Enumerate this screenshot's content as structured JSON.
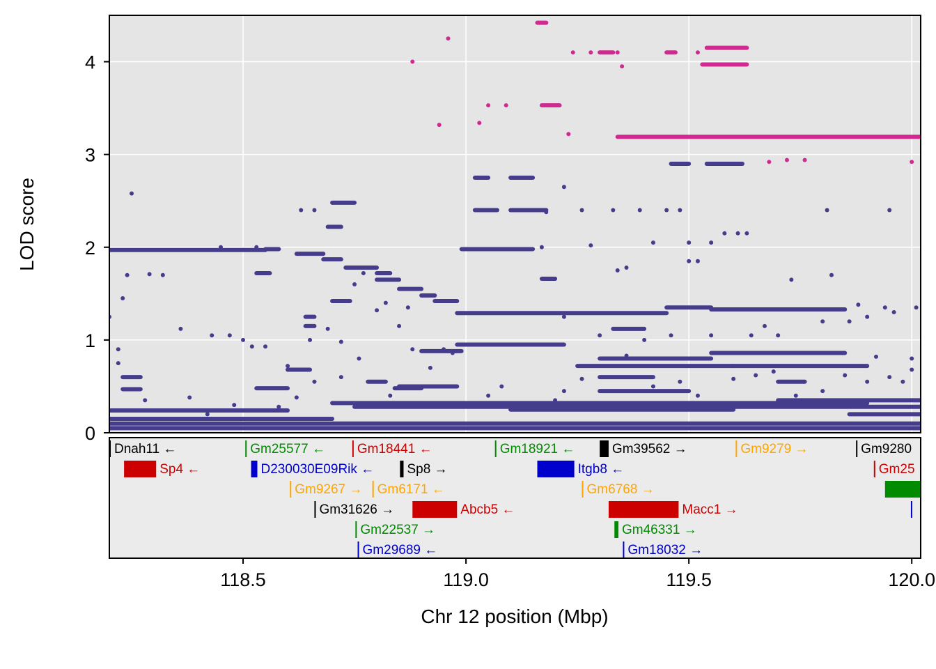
{
  "chart_data": {
    "type": "scatter",
    "title": "",
    "xlabel": "Chr 12 position (Mbp)",
    "ylabel": "LOD score",
    "xlim": [
      118.2,
      120.02
    ],
    "ylim": [
      0,
      4.5
    ],
    "x_ticks": [
      {
        "value": 118.5,
        "label": "118.5"
      },
      {
        "value": 119.0,
        "label": "119.0"
      },
      {
        "value": 119.5,
        "label": "119.5"
      },
      {
        "value": 120.0,
        "label": "120.0"
      }
    ],
    "y_ticks": [
      {
        "value": 0,
        "label": "0"
      },
      {
        "value": 1,
        "label": "1"
      },
      {
        "value": 2,
        "label": "2"
      },
      {
        "value": 3,
        "label": "3"
      },
      {
        "value": 4,
        "label": "4"
      }
    ],
    "grid": true,
    "colors": {
      "panel_bg": "#e5e5e5",
      "grid": "#ffffff",
      "snp_low": "#453d8c",
      "snp_high": "#ce2a8f"
    },
    "series": [
      {
        "color": "#453d8c",
        "segments": [
          [
            118.2,
            118.55,
            1.97
          ],
          [
            118.55,
            118.58,
            1.98
          ],
          [
            118.62,
            118.68,
            1.93
          ],
          [
            118.68,
            118.72,
            1.87
          ],
          [
            118.73,
            118.8,
            1.78
          ],
          [
            118.8,
            118.83,
            1.72
          ],
          [
            118.8,
            118.85,
            1.65
          ],
          [
            118.85,
            118.9,
            1.55
          ],
          [
            118.9,
            118.93,
            1.48
          ],
          [
            118.93,
            118.98,
            1.42
          ],
          [
            118.98,
            119.45,
            1.29
          ],
          [
            119.45,
            119.55,
            1.35
          ],
          [
            119.55,
            119.85,
            1.33
          ],
          [
            118.7,
            118.74,
            1.42
          ],
          [
            118.7,
            118.75,
            2.48
          ],
          [
            118.69,
            118.72,
            2.22
          ],
          [
            118.99,
            119.15,
            1.98
          ],
          [
            119.02,
            119.05,
            2.75
          ],
          [
            119.02,
            119.07,
            2.4
          ],
          [
            119.1,
            119.18,
            2.4
          ],
          [
            119.1,
            119.15,
            2.75
          ],
          [
            119.17,
            119.2,
            1.66
          ],
          [
            119.46,
            119.5,
            2.9
          ],
          [
            119.54,
            119.62,
            2.9
          ],
          [
            119.13,
            119.22,
            0.95
          ],
          [
            118.98,
            119.13,
            0.95
          ],
          [
            118.9,
            118.99,
            0.88
          ],
          [
            118.85,
            118.98,
            0.5
          ],
          [
            118.78,
            118.82,
            0.55
          ],
          [
            118.7,
            119.9,
            0.32
          ],
          [
            118.75,
            120.02,
            0.28
          ],
          [
            119.1,
            119.6,
            0.25
          ],
          [
            119.55,
            119.85,
            0.86
          ],
          [
            119.3,
            119.55,
            0.8
          ],
          [
            119.25,
            119.6,
            0.72
          ],
          [
            119.6,
            119.9,
            0.72
          ],
          [
            119.7,
            119.76,
            0.55
          ],
          [
            119.3,
            119.5,
            0.45
          ],
          [
            119.7,
            120.02,
            0.35
          ],
          [
            118.2,
            118.6,
            0.24
          ],
          [
            118.2,
            120.02,
            0.05
          ],
          [
            118.2,
            120.02,
            0.1
          ],
          [
            118.2,
            118.7,
            0.15
          ],
          [
            118.64,
            118.66,
            1.25
          ],
          [
            118.64,
            118.66,
            1.15
          ],
          [
            118.6,
            118.65,
            0.68
          ],
          [
            118.53,
            118.6,
            0.48
          ],
          [
            118.23,
            118.27,
            0.6
          ],
          [
            118.23,
            118.27,
            0.47
          ],
          [
            119.86,
            120.02,
            0.2
          ],
          [
            119.3,
            119.42,
            0.6
          ],
          [
            119.33,
            119.4,
            1.12
          ],
          [
            118.53,
            118.56,
            1.72
          ],
          [
            118.84,
            118.9,
            0.48
          ]
        ],
        "points": [
          [
            118.25,
            2.58
          ],
          [
            118.63,
            2.4
          ],
          [
            118.66,
            2.4
          ],
          [
            118.2,
            1.25
          ],
          [
            118.23,
            1.45
          ],
          [
            118.22,
            0.9
          ],
          [
            118.24,
            1.7
          ],
          [
            118.29,
            1.71
          ],
          [
            118.32,
            1.7
          ],
          [
            118.36,
            1.12
          ],
          [
            118.43,
            1.05
          ],
          [
            118.47,
            1.05
          ],
          [
            118.5,
            1.0
          ],
          [
            118.52,
            0.93
          ],
          [
            118.55,
            0.93
          ],
          [
            118.6,
            0.72
          ],
          [
            118.45,
            2.0
          ],
          [
            118.53,
            2.0
          ],
          [
            118.58,
            1.98
          ],
          [
            118.62,
            0.38
          ],
          [
            118.65,
            1.0
          ],
          [
            118.69,
            1.12
          ],
          [
            118.72,
            0.98
          ],
          [
            118.75,
            1.6
          ],
          [
            118.77,
            1.72
          ],
          [
            118.8,
            1.32
          ],
          [
            118.82,
            1.4
          ],
          [
            118.85,
            1.15
          ],
          [
            118.87,
            1.35
          ],
          [
            118.88,
            0.9
          ],
          [
            118.92,
            0.7
          ],
          [
            118.95,
            0.9
          ],
          [
            118.97,
            0.86
          ],
          [
            119.22,
            2.65
          ],
          [
            119.18,
            2.38
          ],
          [
            119.26,
            2.4
          ],
          [
            119.33,
            2.4
          ],
          [
            119.39,
            2.4
          ],
          [
            119.42,
            2.05
          ],
          [
            119.45,
            2.4
          ],
          [
            119.48,
            2.4
          ],
          [
            119.5,
            2.05
          ],
          [
            119.55,
            2.05
          ],
          [
            119.58,
            2.15
          ],
          [
            119.61,
            2.15
          ],
          [
            119.63,
            2.15
          ],
          [
            119.17,
            2.0
          ],
          [
            119.28,
            2.02
          ],
          [
            119.34,
            1.75
          ],
          [
            119.36,
            1.78
          ],
          [
            119.22,
            1.25
          ],
          [
            119.3,
            1.05
          ],
          [
            119.36,
            0.83
          ],
          [
            119.4,
            1.0
          ],
          [
            119.46,
            1.05
          ],
          [
            119.5,
            1.85
          ],
          [
            119.52,
            1.85
          ],
          [
            119.55,
            1.05
          ],
          [
            119.64,
            1.05
          ],
          [
            119.67,
            1.15
          ],
          [
            119.7,
            1.05
          ],
          [
            119.73,
            1.65
          ],
          [
            119.8,
            1.2
          ],
          [
            119.82,
            1.7
          ],
          [
            119.86,
            1.2
          ],
          [
            119.88,
            1.38
          ],
          [
            119.9,
            1.25
          ],
          [
            119.94,
            1.35
          ],
          [
            119.96,
            1.3
          ],
          [
            119.98,
            0.55
          ],
          [
            120.0,
            0.8
          ],
          [
            120.01,
            1.35
          ],
          [
            119.81,
            2.4
          ],
          [
            119.95,
            2.4
          ],
          [
            119.92,
            0.82
          ],
          [
            118.22,
            0.75
          ],
          [
            118.28,
            0.35
          ],
          [
            118.38,
            0.38
          ],
          [
            118.42,
            0.2
          ],
          [
            118.48,
            0.3
          ],
          [
            118.58,
            0.28
          ],
          [
            118.66,
            0.55
          ],
          [
            118.72,
            0.6
          ],
          [
            118.76,
            0.8
          ],
          [
            118.83,
            0.4
          ],
          [
            119.05,
            0.4
          ],
          [
            119.08,
            0.5
          ],
          [
            119.2,
            0.35
          ],
          [
            119.22,
            0.45
          ],
          [
            119.26,
            0.58
          ],
          [
            119.4,
            0.3
          ],
          [
            119.42,
            0.5
          ],
          [
            119.48,
            0.55
          ],
          [
            119.52,
            0.4
          ],
          [
            119.6,
            0.58
          ],
          [
            119.65,
            0.62
          ],
          [
            119.69,
            0.66
          ],
          [
            119.74,
            0.4
          ],
          [
            119.8,
            0.45
          ],
          [
            119.85,
            0.62
          ],
          [
            119.9,
            0.55
          ],
          [
            119.95,
            0.6
          ],
          [
            120.0,
            0.68
          ]
        ]
      },
      {
        "color": "#ce2a8f",
        "segments": [
          [
            119.54,
            119.63,
            4.15
          ],
          [
            119.53,
            119.63,
            3.97
          ],
          [
            119.17,
            119.21,
            3.53
          ],
          [
            119.34,
            120.02,
            3.19
          ],
          [
            119.16,
            119.18,
            4.42
          ],
          [
            119.3,
            119.33,
            4.1
          ],
          [
            119.45,
            119.47,
            4.1
          ]
        ],
        "points": [
          [
            118.88,
            4.0
          ],
          [
            118.96,
            4.25
          ],
          [
            118.94,
            3.32
          ],
          [
            119.03,
            3.34
          ],
          [
            119.05,
            3.53
          ],
          [
            119.09,
            3.53
          ],
          [
            119.24,
            4.1
          ],
          [
            119.28,
            4.1
          ],
          [
            119.34,
            4.1
          ],
          [
            119.35,
            3.95
          ],
          [
            119.23,
            3.22
          ],
          [
            119.52,
            4.1
          ],
          [
            119.68,
            2.92
          ],
          [
            119.72,
            2.94
          ],
          [
            119.76,
            2.94
          ],
          [
            120.0,
            2.92
          ]
        ]
      }
    ],
    "genes": [
      {
        "name": "Dnah11",
        "label": "Dnah11 ←",
        "start": 118.2,
        "end": 118.2,
        "row": 0,
        "color": "#000000"
      },
      {
        "name": "Gm25577",
        "label": "Gm25577 ←",
        "start": 118.505,
        "end": 118.505,
        "row": 0,
        "color": "#008b00"
      },
      {
        "name": "Gm18441",
        "label": "Gm18441 ←",
        "start": 118.745,
        "end": 118.745,
        "row": 0,
        "color": "#cd0000"
      },
      {
        "name": "Gm18921",
        "label": "Gm18921 ←",
        "start": 119.065,
        "end": 119.065,
        "row": 0,
        "color": "#008b00"
      },
      {
        "name": "Gm39562",
        "label": "Gm39562 →",
        "start": 119.3,
        "end": 119.32,
        "row": 0,
        "color": "#000000"
      },
      {
        "name": "Gm9279",
        "label": "Gm9279 →",
        "start": 119.605,
        "end": 119.605,
        "row": 0,
        "color": "#ffa500"
      },
      {
        "name": "Gm9280",
        "label": "Gm9280",
        "start": 119.875,
        "end": 119.875,
        "row": 0,
        "color": "#000000"
      },
      {
        "name": "Sp4",
        "label": "Sp4 ←",
        "start": 118.233,
        "end": 118.305,
        "row": 1,
        "color": "#cd0000"
      },
      {
        "name": "D230030E09Rik",
        "label": "D230030E09Rik ←",
        "start": 118.518,
        "end": 118.532,
        "row": 1,
        "color": "#0000cd"
      },
      {
        "name": "Sp8",
        "label": "Sp8 →",
        "start": 118.852,
        "end": 118.86,
        "row": 1,
        "color": "#000000"
      },
      {
        "name": "Itgb8",
        "label": "Itgb8 ←",
        "start": 119.16,
        "end": 119.243,
        "row": 1,
        "color": "#0000cd"
      },
      {
        "name": "Gm25",
        "label": "Gm25",
        "start": 119.915,
        "end": 119.915,
        "row": 1,
        "color": "#cd0000"
      },
      {
        "name": "Gm9267",
        "label": "Gm9267 →",
        "start": 118.605,
        "end": 118.605,
        "row": 2,
        "color": "#ffa500"
      },
      {
        "name": "Gm6171",
        "label": "Gm6171 ←",
        "start": 118.79,
        "end": 118.79,
        "row": 2,
        "color": "#ffa500"
      },
      {
        "name": "Gm6768",
        "label": "Gm6768 →",
        "start": 119.26,
        "end": 119.26,
        "row": 2,
        "color": "#ffa500"
      },
      {
        "name": "",
        "label": "",
        "start": 119.94,
        "end": 120.02,
        "row": 2,
        "color": "#008b00"
      },
      {
        "name": "Gm31626",
        "label": "Gm31626 →",
        "start": 118.66,
        "end": 118.663,
        "row": 3,
        "color": "#000000"
      },
      {
        "name": "Abcb5",
        "label": "Abcb5 ←",
        "start": 118.88,
        "end": 118.98,
        "row": 3,
        "color": "#cd0000"
      },
      {
        "name": "Macc1",
        "label": "Macc1 →",
        "start": 119.32,
        "end": 119.477,
        "row": 3,
        "color": "#cd0000"
      },
      {
        "name": "",
        "label": "",
        "start": 119.998,
        "end": 119.998,
        "row": 3,
        "color": "#0000cd"
      },
      {
        "name": "Gm22537",
        "label": "Gm22537 →",
        "start": 118.752,
        "end": 118.752,
        "row": 4,
        "color": "#008b00"
      },
      {
        "name": "Gm46331",
        "label": "Gm46331 →",
        "start": 119.333,
        "end": 119.342,
        "row": 4,
        "color": "#008b00"
      },
      {
        "name": "Gm29689",
        "label": "Gm29689 ←",
        "start": 118.757,
        "end": 118.757,
        "row": 5,
        "color": "#0000cd"
      },
      {
        "name": "Gm18032",
        "label": "Gm18032 →",
        "start": 119.352,
        "end": 119.352,
        "row": 5,
        "color": "#0000cd"
      }
    ]
  }
}
